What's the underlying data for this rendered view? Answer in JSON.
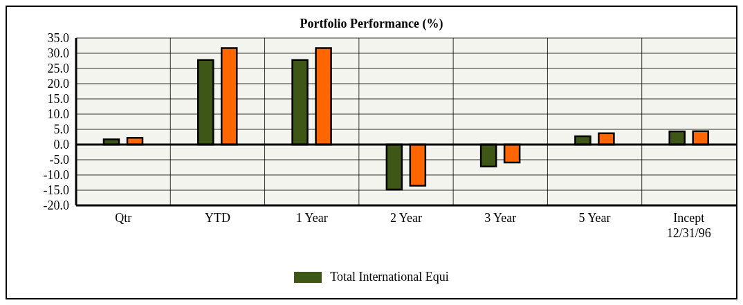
{
  "chart_data": {
    "type": "bar",
    "title": "Portfolio Performance (%)",
    "categories": [
      "Qtr",
      "YTD",
      "1 Year",
      "2 Year",
      "3 Year",
      "5 Year",
      "Incept 12/31/96"
    ],
    "series": [
      {
        "name": "Total International Equi",
        "color": "#3f5716",
        "values": [
          1.7,
          27.8,
          27.8,
          -14.8,
          -7.2,
          2.7,
          4.3
        ]
      },
      {
        "color": "#ff6600",
        "values": [
          2.2,
          31.7,
          31.7,
          -13.5,
          -5.9,
          3.7,
          4.4
        ]
      }
    ],
    "ylim": [
      -20,
      35
    ],
    "yticks": [
      {
        "value": -20,
        "label": "-20.0"
      },
      {
        "value": -15,
        "label": "-15.0"
      },
      {
        "value": -10,
        "label": "-10.0"
      },
      {
        "value": -5,
        "label": "-5.0"
      },
      {
        "value": 0,
        "label": "0.0"
      },
      {
        "value": 5,
        "label": "5.0"
      },
      {
        "value": 10,
        "label": "10.0"
      },
      {
        "value": 15,
        "label": "15.0"
      },
      {
        "value": 20,
        "label": "20.0"
      },
      {
        "value": 25,
        "label": "25.0"
      },
      {
        "value": 30,
        "label": "30.0"
      },
      {
        "value": 35,
        "label": "35.0"
      }
    ],
    "grid": true,
    "legend": "bottom"
  }
}
